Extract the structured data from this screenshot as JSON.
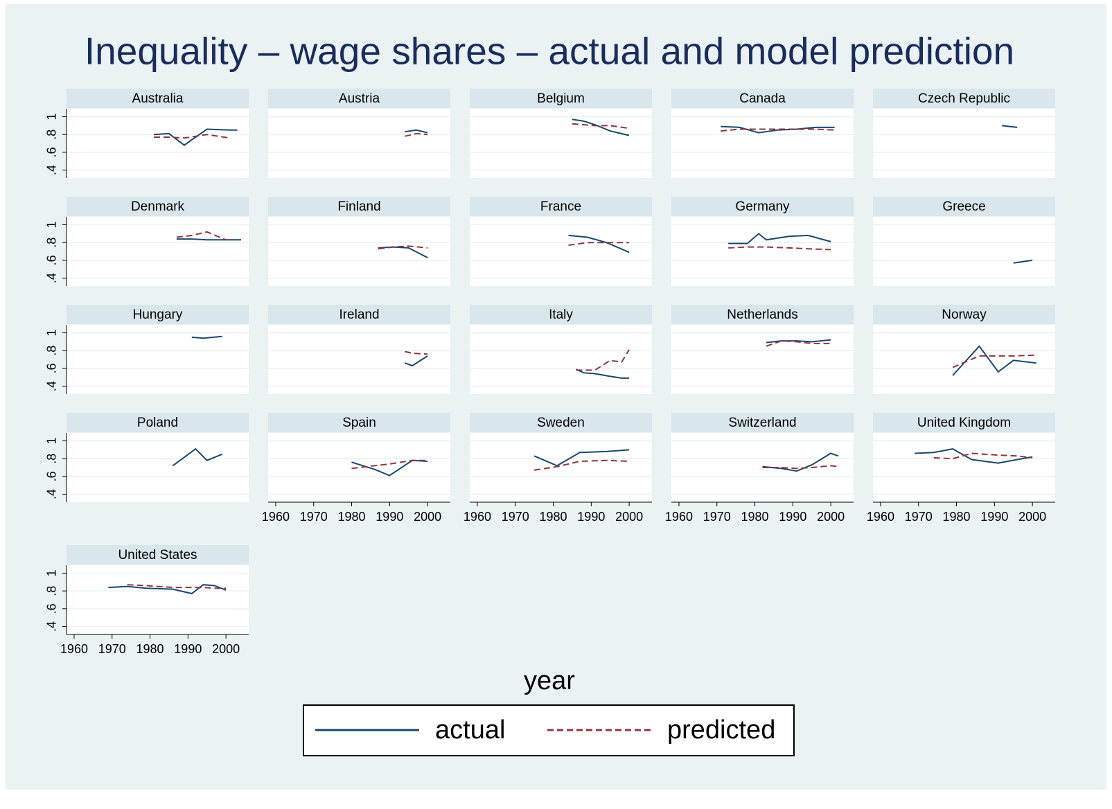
{
  "chart_data": {
    "type": "line",
    "title": "Inequality – wage shares – actual and model prediction",
    "xlabel": "year",
    "legend": [
      {
        "name": "actual",
        "color": "#1a476f",
        "linestyle": "solid"
      },
      {
        "name": "predicted",
        "color": "#90353b",
        "linestyle": "dashed"
      }
    ],
    "ylim": [
      0.31,
      1.09
    ],
    "yticks": [
      {
        "value": 0.4,
        "label": ".4"
      },
      {
        "value": 0.6,
        "label": ".6"
      },
      {
        "value": 0.8,
        "label": ".8"
      },
      1
    ],
    "xlim": [
      1958,
      2006
    ],
    "xticks": [
      1960,
      1970,
      1980,
      1990,
      2000
    ],
    "grid": true,
    "panels": [
      {
        "title": "Australia",
        "x": [
          1981,
          1985,
          1989,
          1995,
          2001,
          2003
        ],
        "series": [
          {
            "values": [
              0.8,
              0.81,
              0.68,
              0.86,
              0.85,
              0.85
            ]
          },
          {
            "values": [
              0.77,
              0.77,
              0.76,
              0.8,
              0.76,
              null
            ]
          }
        ]
      },
      {
        "title": "Austria",
        "x": [
          1994,
          1997,
          2000
        ],
        "series": [
          {
            "values": [
              0.83,
              0.85,
              0.82
            ]
          },
          {
            "values": [
              0.78,
              0.81,
              0.8
            ]
          }
        ]
      },
      {
        "title": "Belgium",
        "x": [
          1985,
          1988,
          1991,
          1995,
          2000
        ],
        "series": [
          {
            "values": [
              0.97,
              0.95,
              0.91,
              0.84,
              0.79
            ]
          },
          {
            "values": [
              0.92,
              0.91,
              0.9,
              0.9,
              0.87
            ]
          }
        ]
      },
      {
        "title": "Canada",
        "x": [
          1971,
          1976,
          1981,
          1986,
          1991,
          1996,
          2001
        ],
        "series": [
          {
            "values": [
              0.89,
              0.88,
              0.82,
              0.85,
              0.86,
              0.88,
              0.88
            ]
          },
          {
            "values": [
              0.84,
              0.86,
              0.86,
              0.86,
              0.86,
              0.86,
              0.85
            ]
          }
        ]
      },
      {
        "title": "Czech Republic",
        "x": [
          1992,
          1996
        ],
        "series": [
          {
            "values": [
              0.9,
              0.88
            ]
          },
          {
            "values": [
              null,
              null
            ]
          }
        ]
      },
      {
        "title": "Denmark",
        "x": [
          1987,
          1991,
          1995,
          2000,
          2004
        ],
        "series": [
          {
            "values": [
              0.84,
              0.84,
              0.83,
              0.83,
              0.83
            ]
          },
          {
            "values": [
              0.86,
              0.88,
              0.92,
              0.83,
              null
            ]
          }
        ]
      },
      {
        "title": "Finland",
        "x": [
          1987,
          1991,
          1995,
          2000
        ],
        "series": [
          {
            "values": [
              0.74,
              0.75,
              0.74,
              0.63
            ]
          },
          {
            "values": [
              0.73,
              0.75,
              0.76,
              0.74
            ]
          }
        ]
      },
      {
        "title": "France",
        "x": [
          1984,
          1989,
          1994,
          2000
        ],
        "series": [
          {
            "values": [
              0.88,
              0.86,
              0.8,
              0.69
            ]
          },
          {
            "values": [
              0.77,
              0.8,
              0.8,
              0.8
            ]
          }
        ]
      },
      {
        "title": "Germany",
        "x": [
          1973,
          1978,
          1981,
          1983,
          1989,
          1994,
          2000
        ],
        "series": [
          {
            "values": [
              0.79,
              0.79,
              0.9,
              0.83,
              0.87,
              0.88,
              0.81
            ]
          },
          {
            "values": [
              0.74,
              0.75,
              0.75,
              0.75,
              0.74,
              0.73,
              0.72
            ]
          }
        ]
      },
      {
        "title": "Greece",
        "x": [
          1995,
          2000
        ],
        "series": [
          {
            "values": [
              0.57,
              0.6
            ]
          },
          {
            "values": [
              null,
              null
            ]
          }
        ]
      },
      {
        "title": "Hungary",
        "x": [
          1991,
          1994,
          1999
        ],
        "series": [
          {
            "values": [
              0.95,
              0.94,
              0.96
            ]
          },
          {
            "values": [
              null,
              null,
              null
            ]
          }
        ]
      },
      {
        "title": "Ireland",
        "x": [
          1994,
          1996,
          2000
        ],
        "series": [
          {
            "values": [
              0.66,
              0.63,
              0.74
            ]
          },
          {
            "values": [
              0.79,
              0.77,
              0.76
            ]
          }
        ]
      },
      {
        "title": "Italy",
        "x": [
          1986,
          1988,
          1991,
          1995,
          1998,
          2000
        ],
        "series": [
          {
            "values": [
              0.59,
              0.55,
              0.54,
              0.51,
              0.49,
              0.49
            ]
          },
          {
            "values": [
              0.58,
              0.58,
              0.58,
              0.69,
              0.67,
              0.81
            ]
          }
        ]
      },
      {
        "title": "Netherlands",
        "x": [
          1983,
          1987,
          1991,
          1995,
          2000
        ],
        "series": [
          {
            "values": [
              0.89,
              0.91,
              0.91,
              0.9,
              0.92
            ]
          },
          {
            "values": [
              0.85,
              0.91,
              0.9,
              0.88,
              0.88
            ]
          }
        ]
      },
      {
        "title": "Norway",
        "x": [
          1979,
          1986,
          1991,
          1995,
          2001
        ],
        "series": [
          {
            "values": [
              0.52,
              0.85,
              0.56,
              0.69,
              0.66
            ]
          },
          {
            "values": [
              0.61,
              0.74,
              0.74,
              0.74,
              0.75
            ]
          }
        ]
      },
      {
        "title": "Poland",
        "x": [
          1986,
          1992,
          1995,
          1999
        ],
        "series": [
          {
            "values": [
              0.72,
              0.91,
              0.78,
              0.85
            ]
          },
          {
            "values": [
              null,
              null,
              null,
              null
            ]
          }
        ]
      },
      {
        "title": "Spain",
        "x": [
          1980,
          1986,
          1990,
          1996,
          2000
        ],
        "series": [
          {
            "values": [
              0.76,
              0.68,
              0.61,
              0.78,
              0.77
            ]
          },
          {
            "values": [
              0.69,
              0.72,
              0.74,
              0.78,
              0.78
            ]
          }
        ]
      },
      {
        "title": "Sweden",
        "x": [
          1975,
          1981,
          1987,
          1994,
          2000
        ],
        "series": [
          {
            "values": [
              0.83,
              0.72,
              0.87,
              0.88,
              0.9
            ]
          },
          {
            "values": [
              0.67,
              0.71,
              0.77,
              0.78,
              0.77
            ]
          }
        ]
      },
      {
        "title": "Switzerland",
        "x": [
          1982,
          1987,
          1991,
          1995,
          2000,
          2002
        ],
        "series": [
          {
            "values": [
              0.71,
              0.69,
              0.66,
              0.73,
              0.86,
              0.83
            ]
          },
          {
            "values": [
              0.7,
              0.7,
              0.69,
              0.7,
              0.72,
              0.71
            ]
          }
        ]
      },
      {
        "title": "United Kingdom",
        "x": [
          1969,
          1974,
          1979,
          1984,
          1991,
          1996,
          2000
        ],
        "series": [
          {
            "values": [
              0.86,
              0.87,
              0.91,
              0.79,
              0.75,
              0.79,
              0.82
            ]
          },
          {
            "values": [
              null,
              0.81,
              0.8,
              0.86,
              0.84,
              0.83,
              0.81
            ]
          }
        ]
      },
      {
        "title": "United States",
        "x": [
          1969,
          1974,
          1979,
          1986,
          1991,
          1994,
          1997,
          2000
        ],
        "series": [
          {
            "values": [
              0.84,
              0.85,
              0.83,
              0.82,
              0.77,
              0.87,
              0.86,
              0.81
            ]
          },
          {
            "values": [
              null,
              0.87,
              0.86,
              0.84,
              0.84,
              0.84,
              0.83,
              0.83
            ]
          }
        ]
      }
    ]
  }
}
